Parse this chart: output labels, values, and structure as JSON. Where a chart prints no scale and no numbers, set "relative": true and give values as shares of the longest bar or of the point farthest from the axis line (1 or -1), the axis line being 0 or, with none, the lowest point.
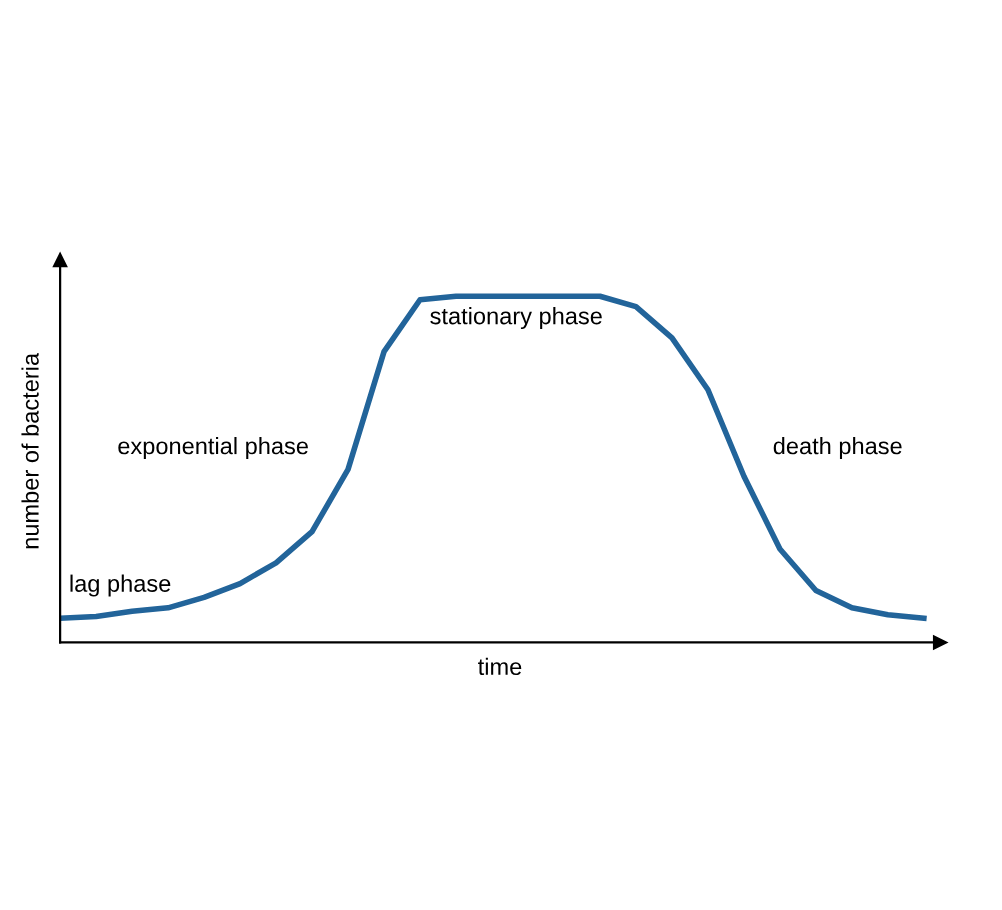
{
  "chart_data": {
    "type": "line",
    "relative": true,
    "xlabel": "time",
    "ylabel": "number of bacteria",
    "categories": [
      null,
      null,
      null,
      null,
      null,
      null,
      null,
      null,
      null,
      null,
      null,
      null,
      null,
      null,
      null,
      null,
      null,
      null,
      null,
      null,
      null,
      null,
      null,
      null,
      null
    ],
    "series": [
      {
        "color": "#22649a",
        "values": [
          0.07,
          0.075,
          0.09,
          0.1,
          0.13,
          0.17,
          0.23,
          0.32,
          0.5,
          0.84,
          0.99,
          1,
          1,
          1,
          1,
          1,
          0.97,
          0.88,
          0.73,
          0.48,
          0.27,
          0.15,
          0.1,
          0.08,
          0.07
        ]
      }
    ],
    "annotations": [
      "lag phase",
      "exponential phase",
      "stationary phase",
      "death phase"
    ],
    "grid": false,
    "legend": false,
    "marker": "none",
    "line_style": "solid"
  }
}
